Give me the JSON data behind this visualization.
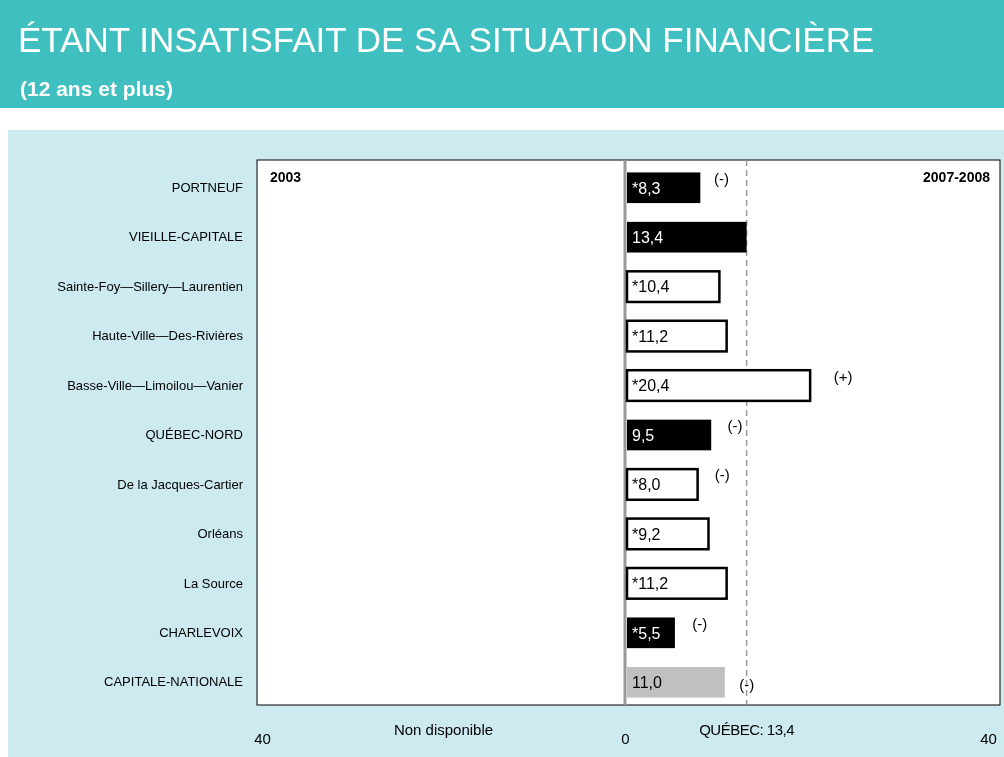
{
  "chart_data": {
    "type": "bar",
    "orientation": "horizontal",
    "title": "ÉTANT INSATISFAIT DE SA SITUATION FINANCIÈRE",
    "subtitle": "(12 ans et plus)",
    "categories": [
      "PORTNEUF",
      "VIEILLE-CAPITALE",
      "Sainte-Foy—Sillery—Laurentien",
      "Haute-Ville—Des-Rivières",
      "Basse-Ville—Limoilou—Vanier",
      "QUÉBEC-NORD",
      "De la Jacques-Cartier",
      "Orléans",
      "La Source",
      "CHARLEVOIX",
      "CAPITALE-NATIONALE"
    ],
    "values": [
      8.3,
      13.4,
      10.4,
      11.2,
      20.4,
      9.5,
      8.0,
      9.2,
      11.2,
      5.5,
      11.0
    ],
    "colors": [
      "#000000",
      "#000000",
      "#ffffff",
      "#ffffff",
      "#ffffff",
      "#000000",
      "#ffffff",
      "#ffffff",
      "#ffffff",
      "#000000",
      "#c0c0c0"
    ],
    "value_labels": [
      "*8,3",
      "13,4",
      "*10,4",
      "*11,2",
      "*20,4",
      "9,5",
      "*8,0",
      "*9,2",
      "*11,2",
      "*5,5",
      "11,0"
    ],
    "xlim": [
      -40,
      40
    ],
    "xticks": [
      {
        "value": -40,
        "label": "40"
      },
      0,
      40
    ],
    "ref_lines": [
      {
        "axis": "x",
        "value": 13.4,
        "label": "QUÉBEC: 13,4",
        "color": "#999999",
        "line_style": "dashed"
      }
    ],
    "annotations": [
      "2003",
      "2007-2008",
      "Non disponible",
      "(-)",
      "(+)",
      "(-)",
      "(-)",
      "(-)",
      "(-)"
    ]
  }
}
